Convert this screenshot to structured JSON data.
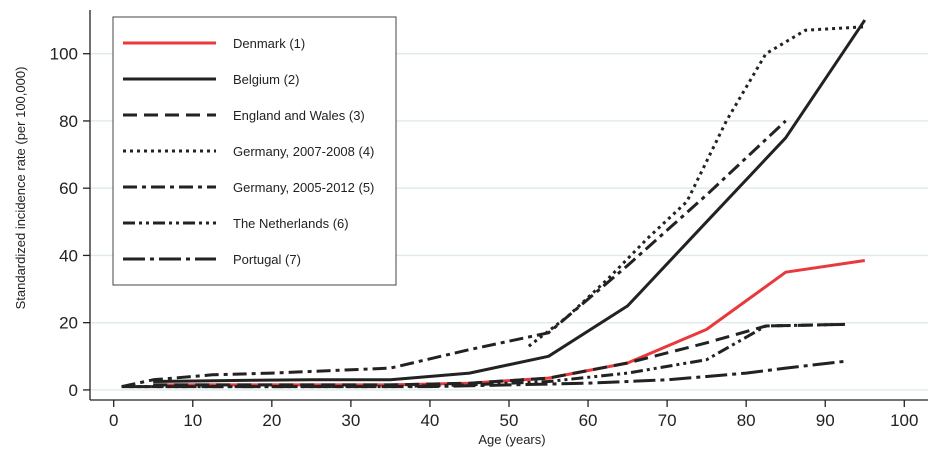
{
  "chart_data": {
    "type": "line",
    "title": "",
    "xlabel": "Age (years)",
    "ylabel": "Standardized incidence rate (per 100,000)",
    "xlim": [
      -3,
      103
    ],
    "ylim": [
      -3,
      113
    ],
    "x_ticks": [
      0,
      10,
      20,
      30,
      40,
      50,
      60,
      70,
      80,
      90,
      100
    ],
    "y_ticks": [
      0,
      20,
      40,
      60,
      80,
      100
    ],
    "grid": true,
    "legend_position": "top-left",
    "series": [
      {
        "name": "Denmark (1)",
        "color": "#e8393c",
        "style": "solid",
        "x": [
          5,
          15,
          25,
          35,
          45,
          55,
          65,
          75,
          85,
          95
        ],
        "y": [
          1.5,
          1.5,
          1.5,
          1.5,
          2,
          3.5,
          8,
          18,
          35,
          38.5
        ]
      },
      {
        "name": "Belgium (2)",
        "color": "#222222",
        "style": "solid",
        "x": [
          5,
          15,
          25,
          35,
          45,
          55,
          65,
          75,
          85,
          95
        ],
        "y": [
          2.5,
          2.8,
          3,
          3,
          5,
          10,
          25,
          50,
          75,
          110
        ]
      },
      {
        "name": "England and Wales (3)",
        "color": "#222222",
        "style": "dash",
        "x": [
          5,
          15,
          25,
          35,
          45,
          55,
          65,
          75,
          82.5,
          92.5
        ],
        "y": [
          1.5,
          1.5,
          1.5,
          1.5,
          2,
          3.5,
          8,
          14,
          19,
          19.5
        ]
      },
      {
        "name": "Germany, 2007-2008 (4)",
        "color": "#222222",
        "style": "dot",
        "x": [
          52.5,
          57.5,
          62.5,
          67.5,
          72.5,
          77.5,
          82.5,
          87.5,
          95
        ],
        "y": [
          13,
          22,
          33,
          45,
          56,
          80,
          100,
          107,
          108
        ]
      },
      {
        "name": "Germany, 2005-2012 (5)",
        "color": "#222222",
        "style": "dashdot",
        "x": [
          1,
          5,
          12.5,
          20,
          35,
          45,
          55,
          65,
          75,
          85
        ],
        "y": [
          1,
          3,
          4.5,
          5,
          6.5,
          12,
          17,
          37,
          58,
          80
        ]
      },
      {
        "name": "The Netherlands (6)",
        "color": "#222222",
        "style": "dashdotdot",
        "x": [
          1,
          5,
          15,
          25,
          35,
          45,
          55,
          65,
          75,
          82.5,
          92.5
        ],
        "y": [
          1,
          1,
          1,
          1,
          1,
          1.5,
          2.5,
          5,
          9,
          19,
          19.5
        ]
      },
      {
        "name": "Portugal (7)",
        "color": "#222222",
        "style": "longdashdot",
        "x": [
          2,
          10,
          20,
          30,
          40,
          50,
          60,
          70,
          80,
          85,
          92.5
        ],
        "y": [
          1,
          1,
          1,
          1,
          1,
          1.5,
          2,
          3,
          5,
          6.5,
          8.5
        ]
      }
    ]
  }
}
